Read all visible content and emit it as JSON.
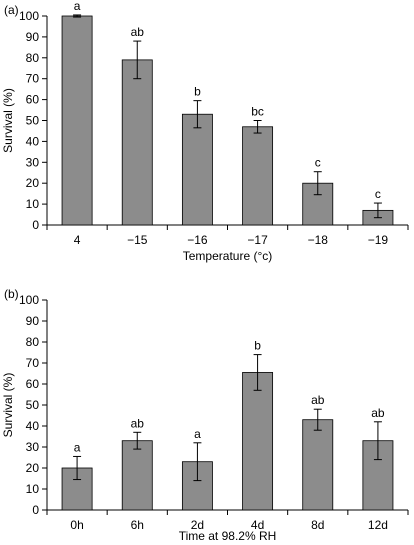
{
  "chart_data": [
    {
      "type": "bar",
      "panel_label": "(a)",
      "categories": [
        "4",
        "−15",
        "−16",
        "−17",
        "−18",
        "−19"
      ],
      "values": [
        100,
        79,
        53,
        47,
        20,
        7
      ],
      "errors": [
        0.5,
        9,
        6.5,
        3,
        5.5,
        3.5
      ],
      "annotations": [
        "a",
        "ab",
        "b",
        "bc",
        "c",
        "c"
      ],
      "xlabel": "Temperature (°c)",
      "ylabel": "Survival (%)",
      "ylim": [
        0,
        100
      ],
      "yticks": [
        0,
        10,
        20,
        30,
        40,
        50,
        60,
        70,
        80,
        90,
        100
      ],
      "bar_color": "#8c8c8c",
      "grid": false
    },
    {
      "type": "bar",
      "panel_label": "(b)",
      "categories": [
        "0h",
        "6h",
        "2d",
        "4d",
        "8d",
        "12d"
      ],
      "values": [
        20,
        33,
        23,
        65.5,
        43,
        33
      ],
      "errors": [
        5.5,
        4,
        9,
        8.5,
        5,
        9
      ],
      "annotations": [
        "a",
        "ab",
        "a",
        "b",
        "ab",
        "ab"
      ],
      "xlabel": "Time at 98.2% RH",
      "ylabel": "Survival (%)",
      "ylim": [
        0,
        100
      ],
      "yticks": [
        0,
        10,
        20,
        30,
        40,
        50,
        60,
        70,
        80,
        90,
        100
      ],
      "bar_color": "#8c8c8c",
      "grid": false
    }
  ]
}
